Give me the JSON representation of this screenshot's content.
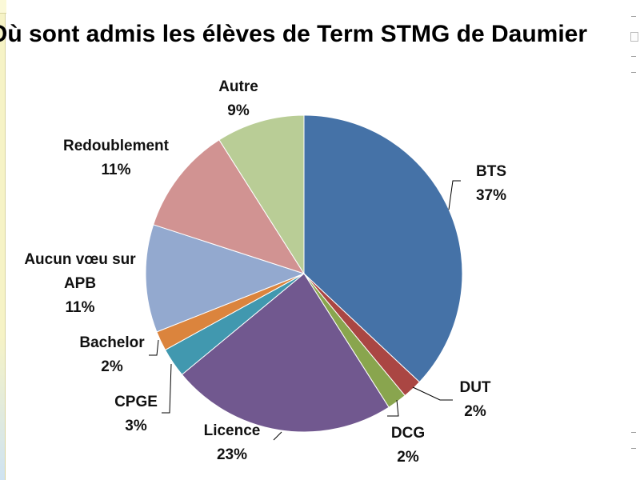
{
  "chart_data": {
    "type": "pie",
    "title": "Où sont admis les élèves de Term STMG de Daumier",
    "slices": [
      {
        "label": "BTS",
        "value": 37,
        "pct_label": "37%",
        "color": "#4572A7"
      },
      {
        "label": "DUT",
        "value": 2,
        "pct_label": "2%",
        "color": "#AA4643"
      },
      {
        "label": "DCG",
        "value": 2,
        "pct_label": "2%",
        "color": "#89A54E"
      },
      {
        "label": "Licence",
        "value": 23,
        "pct_label": "23%",
        "color": "#71588F"
      },
      {
        "label": "CPGE",
        "value": 3,
        "pct_label": "3%",
        "color": "#4198AF"
      },
      {
        "label": "Bachelor",
        "value": 2,
        "pct_label": "2%",
        "color": "#DB843D"
      },
      {
        "label": "Aucun vœu sur APB",
        "label_lines": [
          "Aucun vœu sur",
          "APB"
        ],
        "value": 11,
        "pct_label": "11%",
        "color": "#93A9CF"
      },
      {
        "label": "Redoublement",
        "value": 11,
        "pct_label": "11%",
        "color": "#D19392"
      },
      {
        "label": "Autre",
        "value": 9,
        "pct_label": "9%",
        "color": "#B9CD96"
      }
    ]
  }
}
